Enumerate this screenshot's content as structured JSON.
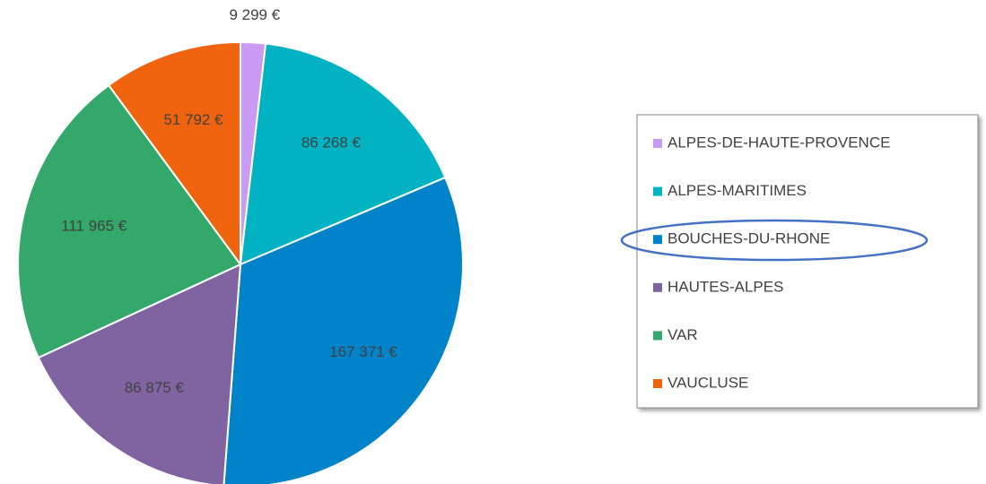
{
  "chart_data": {
    "type": "pie",
    "categories": [
      "ALPES-DE-HAUTE-PROVENCE",
      "ALPES-MARITIMES",
      "BOUCHES-DU-RHONE",
      "HAUTES-ALPES",
      "VAR",
      "VAUCLUSE"
    ],
    "values": [
      9299,
      86268,
      167371,
      86875,
      111965,
      51792
    ],
    "value_labels": [
      "9 299 €",
      "86 268 €",
      "167 371 €",
      "86 875 €",
      "111 965 €",
      "51 792 €"
    ],
    "colors": [
      "#c99bf3",
      "#00b2c2",
      "#0083c9",
      "#8064a2",
      "#33a86a",
      "#f0640f"
    ],
    "legend": "right"
  }
}
